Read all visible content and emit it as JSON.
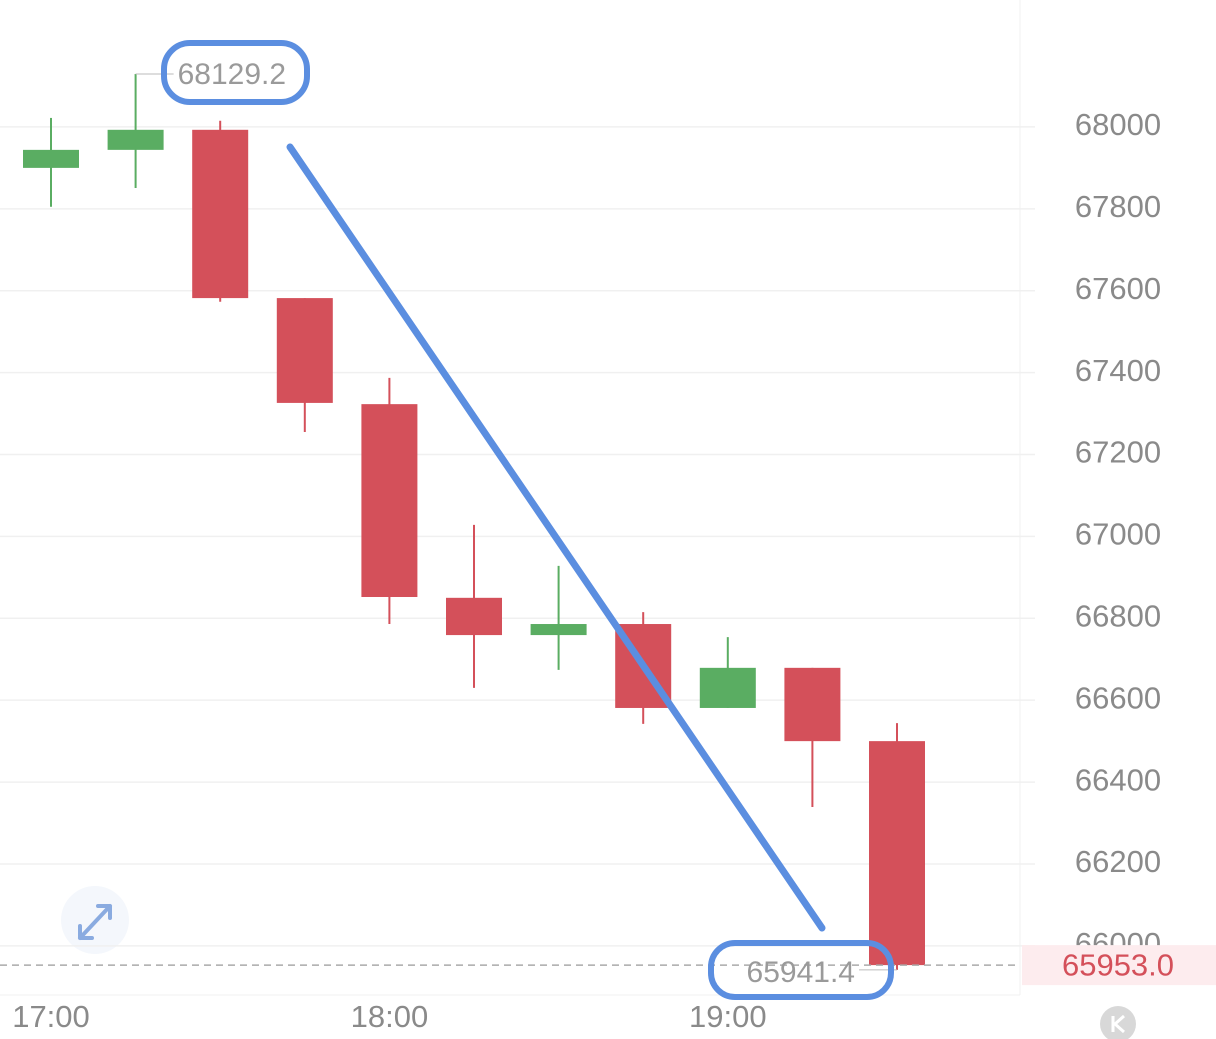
{
  "chart_data": {
    "type": "candlestick",
    "categories": [
      "17:00",
      null,
      null,
      null,
      "18:00",
      null,
      null,
      null,
      "19:00",
      null,
      null
    ],
    "open": [
      67900,
      67944,
      67993,
      67582,
      67323,
      66850,
      66759,
      66786,
      66581,
      66679,
      66500
    ],
    "high": [
      68022,
      68129.2,
      68015,
      67582,
      67387,
      67028,
      66928,
      66815,
      66754,
      66679,
      66544
    ],
    "low": [
      67805,
      67851,
      67573,
      67255,
      66786,
      66630,
      66674,
      66542,
      66581,
      66339,
      65941.4
    ],
    "close": [
      67944,
      67993,
      67582,
      67326,
      66852,
      66759,
      66786,
      66581,
      66679,
      66500,
      65953
    ],
    "up_color": "#5aad62",
    "down_color": "#d4505a",
    "ylim": [
      65880,
      68310
    ],
    "yticks": [
      66000,
      66200,
      66400,
      66600,
      66800,
      67000,
      67200,
      67400,
      67600,
      67800,
      68000
    ],
    "grid": true,
    "current_price": {
      "value": 65953,
      "label": "65953.0"
    }
  }
}
